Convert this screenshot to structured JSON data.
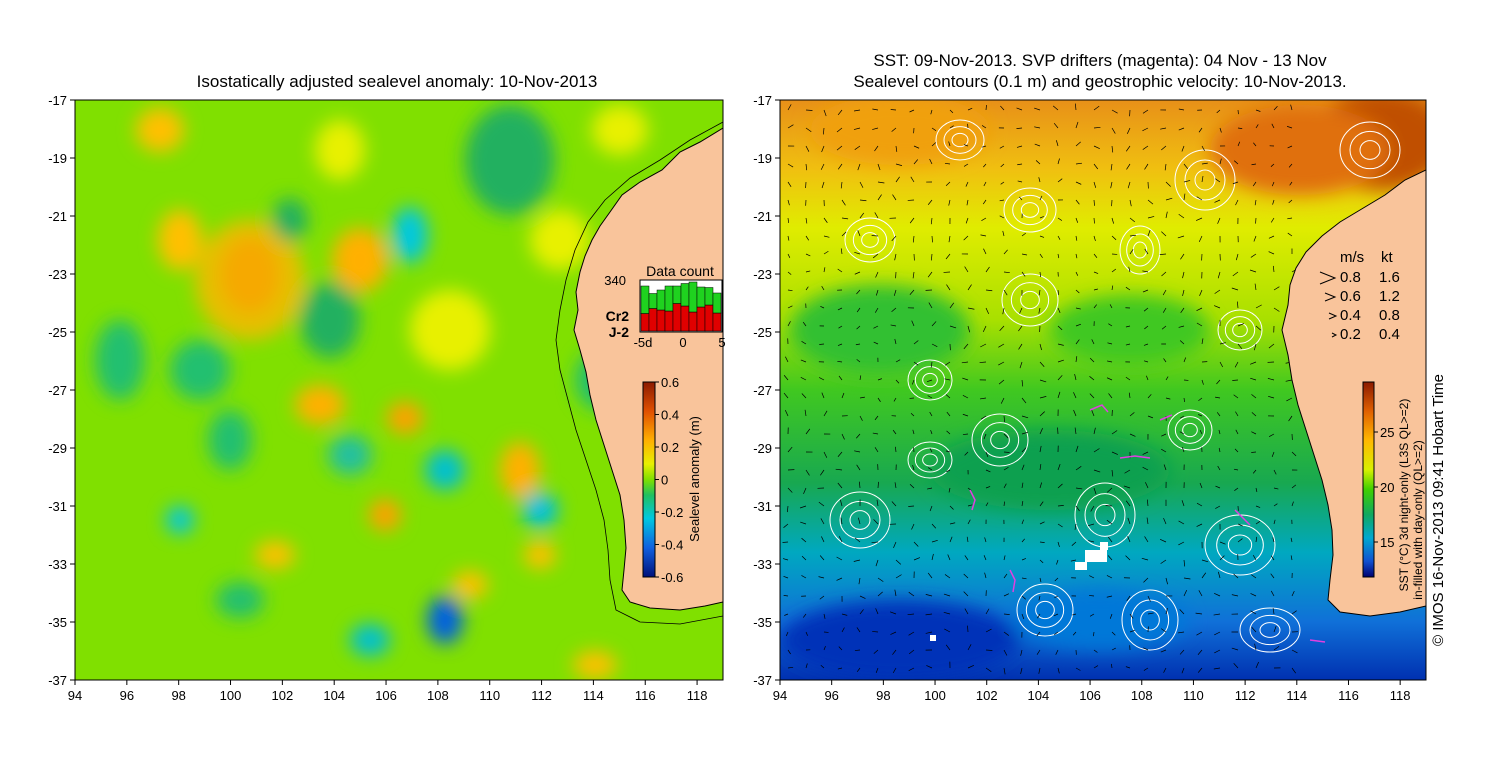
{
  "left_panel": {
    "title": "Isostatically adjusted sealevel anomaly: 10-Nov-2013",
    "x_ticks": [
      "94",
      "96",
      "98",
      "100",
      "102",
      "104",
      "106",
      "108",
      "110",
      "112",
      "114",
      "116",
      "118"
    ],
    "y_ticks": [
      "-17",
      "-19",
      "-21",
      "-23",
      "-25",
      "-27",
      "-29",
      "-31",
      "-33",
      "-35",
      "-37"
    ],
    "colorbar": {
      "label": "Sealevel anomaly (m)",
      "ticks": [
        "0.6",
        "0.4",
        "0.2",
        "0",
        "-0.2",
        "-0.4",
        "-0.6"
      ]
    },
    "data_count": {
      "title": "Data count",
      "max_label": "340",
      "series": [
        {
          "name": "Cr2",
          "color": "#1fd21f"
        },
        {
          "name": "J-2",
          "color": "#e00000"
        }
      ],
      "x_labels": [
        "-5d",
        "0",
        "5"
      ],
      "bars_j2": [
        0.35,
        0.45,
        0.42,
        0.4,
        0.55,
        0.5,
        0.38,
        0.48,
        0.52,
        0.36
      ],
      "bars_cr2": [
        0.55,
        0.3,
        0.4,
        0.5,
        0.35,
        0.45,
        0.6,
        0.4,
        0.35,
        0.4
      ]
    }
  },
  "right_panel": {
    "title_line1": "SST: 09-Nov-2013. SVP drifters (magenta): 04 Nov - 13 Nov",
    "title_line2": "Sealevel contours (0.1 m) and geostrophic velocity: 10-Nov-2013.",
    "x_ticks": [
      "94",
      "96",
      "98",
      "100",
      "102",
      "104",
      "106",
      "108",
      "110",
      "112",
      "114",
      "116",
      "118"
    ],
    "y_ticks": [
      "-17",
      "-19",
      "-21",
      "-23",
      "-25",
      "-27",
      "-29",
      "-31",
      "-33",
      "-35",
      "-37"
    ],
    "legend": {
      "header_ms": "m/s",
      "header_kt": "kt",
      "rows": [
        {
          "ms": "0.8",
          "kt": "1.6"
        },
        {
          "ms": "0.6",
          "kt": "1.2"
        },
        {
          "ms": "0.4",
          "kt": "0.8"
        },
        {
          "ms": "0.2",
          "kt": "0.4"
        }
      ]
    },
    "colorbar": {
      "ticks": [
        "25",
        "20",
        "15"
      ],
      "label_line1": "SST (°C) 3d night-only (L3S QL>=2)",
      "label_line2": "in-filled with day-only (QL>=2)"
    }
  },
  "credit": "© IMOS 16-Nov-2013 09:41 Hobart Time",
  "colors": {
    "land": "#f9c49b",
    "sla_base": "#80e000",
    "sst_warm": "#e88a10",
    "sst_cold": "#0040d0",
    "arrow": "#000000",
    "contour": "#ffffff",
    "drifter": "#e040e0"
  }
}
